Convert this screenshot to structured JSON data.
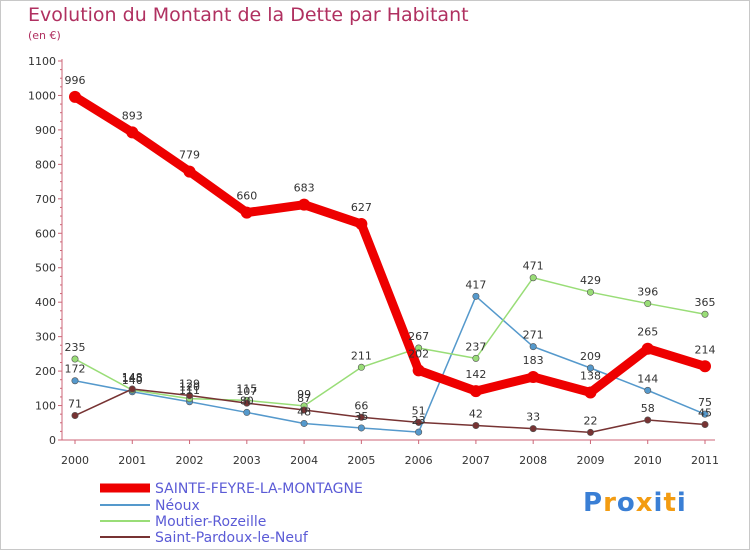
{
  "chart_data": {
    "type": "line",
    "title": "Evolution du Montant de la Dette par Habitant",
    "subtitle": "(en €)",
    "x": [
      "2000",
      "2001",
      "2002",
      "2003",
      "2004",
      "2005",
      "2006",
      "2007",
      "2008",
      "2009",
      "2010",
      "2011"
    ],
    "ylim": [
      0,
      1100
    ],
    "yticks": [
      0,
      100,
      200,
      300,
      400,
      500,
      600,
      700,
      800,
      900,
      1000,
      1100
    ],
    "grid": false,
    "legend_position": "bottom-left",
    "series": [
      {
        "name": "SAINTE-FEYRE-LA-MONTAGNE",
        "color": "#ee0000",
        "values": [
          996,
          893,
          779,
          660,
          683,
          627,
          202,
          142,
          183,
          138,
          265,
          214
        ]
      },
      {
        "name": "Néoux",
        "color": "#5599cc",
        "values": [
          172,
          140,
          111,
          80,
          48,
          35,
          23,
          417,
          271,
          209,
          144,
          75
        ]
      },
      {
        "name": "Moutier-Rozeille",
        "color": "#99dd77",
        "values": [
          235,
          145,
          120,
          115,
          99,
          211,
          267,
          237,
          471,
          429,
          396,
          365
        ]
      },
      {
        "name": "Saint-Pardoux-le-Neuf",
        "color": "#773333",
        "values": [
          71,
          148,
          129,
          107,
          87,
          66,
          51,
          42,
          33,
          22,
          58,
          45
        ]
      }
    ]
  },
  "logo": {
    "text": "Proxiti",
    "colors": [
      "#3a7fd5",
      "#f39c12",
      "#3a7fd5",
      "#f39c12",
      "#3a7fd5",
      "#f39c12",
      "#3a7fd5"
    ]
  }
}
